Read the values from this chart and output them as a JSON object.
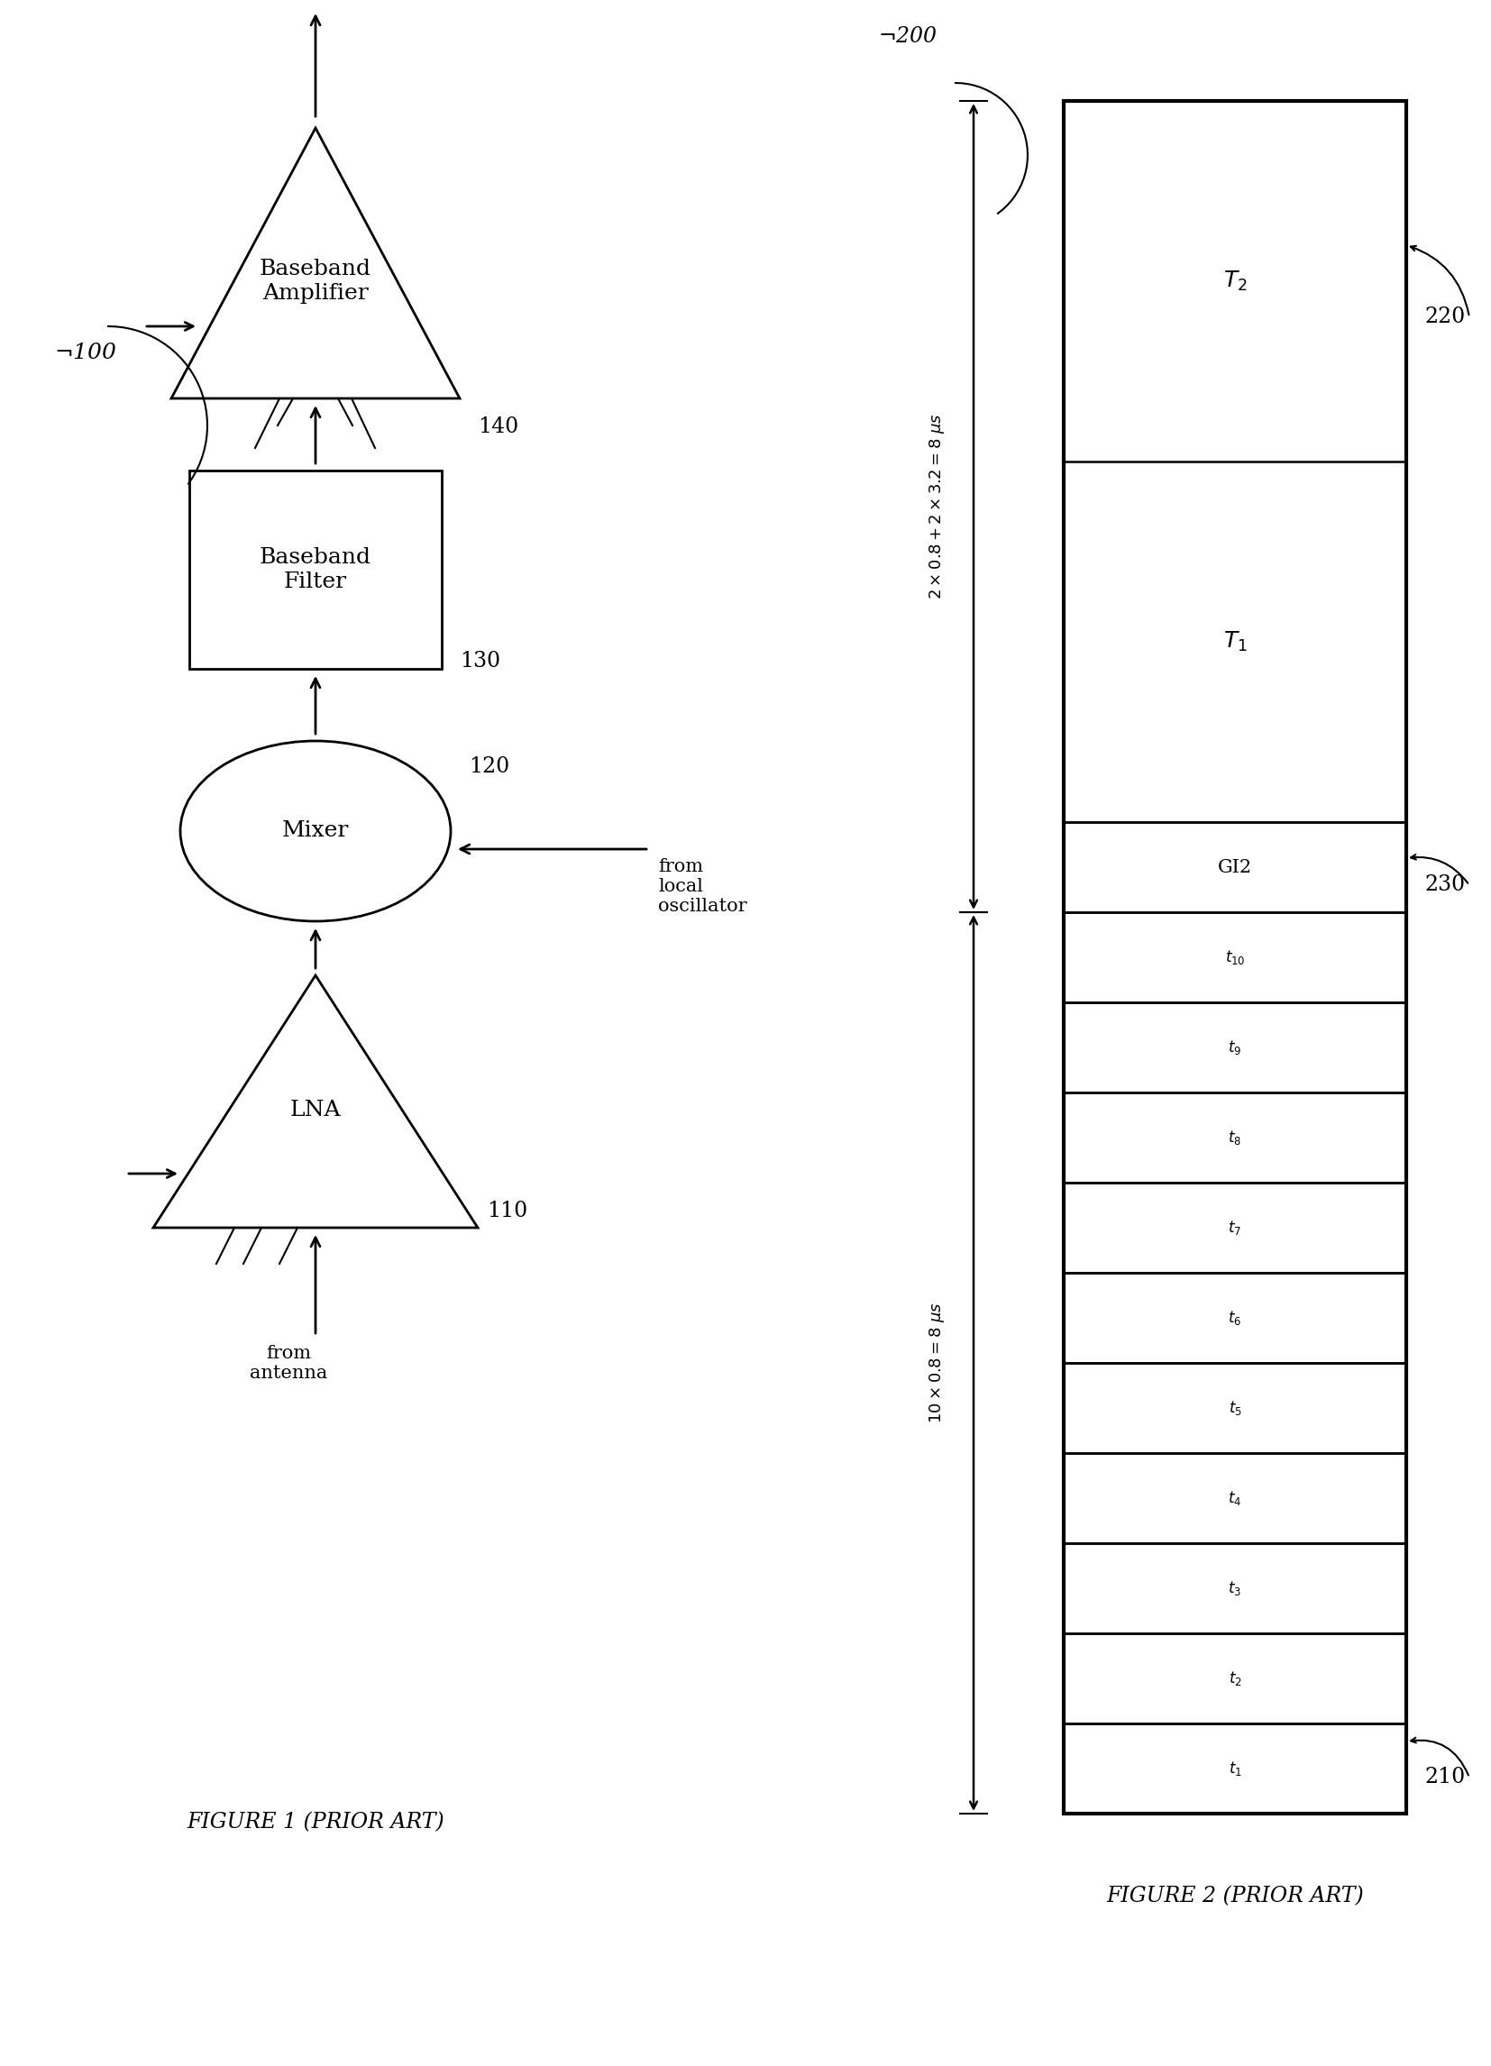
{
  "bg_color": "#ffffff",
  "fig_width": 16.54,
  "fig_height": 22.92,
  "fig1": {
    "label": "100",
    "caption": "FIGURE 1 (PRIOR ART)",
    "lna_label": "LNA",
    "lna_ref": "110",
    "mixer_label": "Mixer",
    "mixer_ref": "120",
    "bbf_label": "Baseband\nFilter",
    "bbf_ref": "130",
    "bba_label": "Baseband\nAmplifier",
    "bba_ref": "140",
    "from_antenna": "from\nantenna",
    "from_lo": "from\nlocal\noscillator"
  },
  "fig2": {
    "label": "200",
    "caption": "FIGURE 2 (PRIOR ART)",
    "ref_210": "210",
    "ref_220": "220",
    "ref_230": "230",
    "time_slots": [
      "t_1",
      "t_2",
      "t_3",
      "t_4",
      "t_5",
      "t_6",
      "t_7",
      "t_8",
      "t_9",
      "t_{10}"
    ],
    "gi2_label": "GI2",
    "t1_label": "T_1",
    "t2_label": "T_2",
    "bottom_annotation": "10×0.8=8μs",
    "top_annotation": "2×0.8+2×3.2=8μs"
  }
}
